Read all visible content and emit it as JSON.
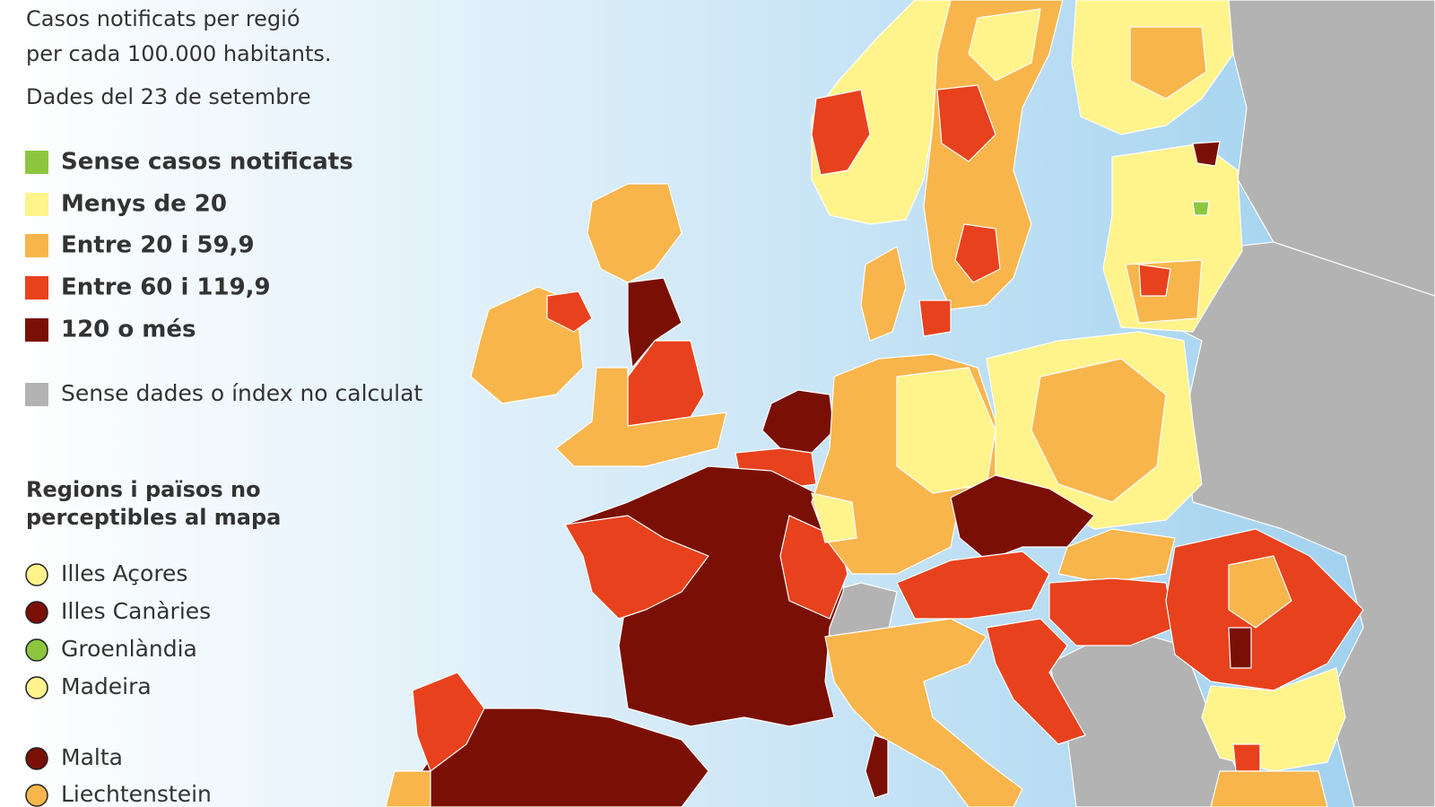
{
  "header": {
    "title_lines": [
      "Casos notificats per regió",
      "per cada 100.000 habitants."
    ],
    "date": "Dades del 23 de setembre"
  },
  "legend": {
    "items": [
      {
        "label": "Sense casos notificats",
        "color": "#8cc63f"
      },
      {
        "label": "Menys de 20",
        "color": "#fff38c"
      },
      {
        "label": "Entre 20 i 59,9",
        "color": "#f8b54c"
      },
      {
        "label": "Entre 60 i 119,9",
        "color": "#e8411d"
      },
      {
        "label": "120 o més",
        "color": "#7a0f05"
      }
    ],
    "no_data": {
      "label": "Sense dades o índex no calculat",
      "color": "#b3b3b3"
    }
  },
  "small_regions": {
    "title_lines": [
      "Regions i països no",
      "perceptibles al mapa"
    ],
    "items": [
      {
        "label": "Illes Açores",
        "color": "#fff38c"
      },
      {
        "label": "Illes Canàries",
        "color": "#7a0f05"
      },
      {
        "label": "Groenlàndia",
        "color": "#8cc63f"
      },
      {
        "label": "Madeira",
        "color": "#fff38c"
      },
      {
        "label": "Malta",
        "color": "#7a0f05"
      },
      {
        "label": "Liechtenstein",
        "color": "#f8b54c"
      }
    ]
  }
}
